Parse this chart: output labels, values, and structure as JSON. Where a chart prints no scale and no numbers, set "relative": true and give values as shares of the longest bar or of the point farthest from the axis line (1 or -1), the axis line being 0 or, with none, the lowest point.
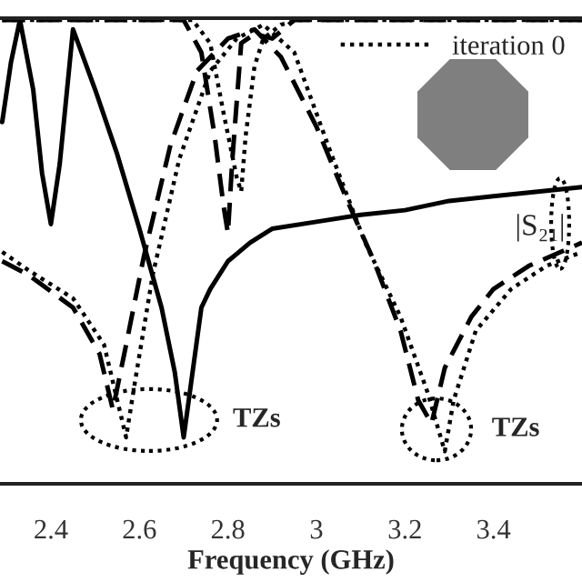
{
  "chart_data": {
    "type": "line",
    "relative": true,
    "xlabel": "Frequency (GHz)",
    "xlim": [
      2.285,
      3.6
    ],
    "xticks": [
      2.4,
      2.6,
      2.8,
      3,
      3.2,
      3.4
    ],
    "tick_labels": "x",
    "grid": false,
    "legend": "top right",
    "annotations": [
      "TZs",
      "TZs",
      "|S₂₁|"
    ],
    "series": [
      {
        "color": "#000000",
        "line_style": "solid",
        "x": [
          2.29,
          2.31,
          2.33,
          2.36,
          2.38,
          2.4,
          2.42,
          2.45,
          2.5,
          2.55,
          2.6,
          2.65,
          2.68,
          2.7,
          2.72,
          2.74,
          2.76,
          2.8,
          2.85,
          2.9,
          3.0,
          3.1,
          3.2,
          3.3,
          3.4,
          3.5,
          3.6
        ],
        "values": [
          0.78,
          0.91,
          1.0,
          0.85,
          0.67,
          0.56,
          0.69,
          0.98,
          0.85,
          0.71,
          0.55,
          0.38,
          0.24,
          0.1,
          0.24,
          0.38,
          0.42,
          0.48,
          0.52,
          0.55,
          0.565,
          0.58,
          0.59,
          0.61,
          0.62,
          0.63,
          0.64
        ]
      },
      {
        "color": "#000000",
        "line_style": "dashed",
        "x": [
          2.29,
          2.5,
          2.7,
          2.74,
          2.77,
          2.79,
          2.8,
          2.81,
          2.83,
          2.86,
          2.9,
          2.95,
          3.0,
          3.6
        ],
        "values": [
          1,
          1,
          1,
          0.93,
          0.75,
          0.6,
          0.54,
          0.7,
          0.95,
          0.97,
          0.96,
          1,
          1,
          1
        ]
      },
      {
        "color": "#000000",
        "line_style": "dashed",
        "x": [
          2.29,
          2.35,
          2.45,
          2.51,
          2.54,
          2.57,
          2.61,
          2.67,
          2.73,
          2.8,
          2.86,
          2.92,
          3.0,
          3.07,
          3.13,
          3.19,
          3.23,
          3.26,
          3.29,
          3.35,
          3.4,
          3.48,
          3.6
        ],
        "values": [
          0.48,
          0.45,
          0.38,
          0.28,
          0.16,
          0.3,
          0.49,
          0.73,
          0.89,
          0.96,
          0.98,
          0.92,
          0.77,
          0.61,
          0.48,
          0.33,
          0.18,
          0.13,
          0.25,
          0.36,
          0.42,
          0.47,
          0.52
        ]
      },
      {
        "name": "iteration 0",
        "color": "#000000",
        "line_style": "dotted",
        "x": [
          2.29,
          2.5,
          2.72,
          2.76,
          2.79,
          2.82,
          2.83,
          2.84,
          2.86,
          2.88,
          2.92,
          2.96,
          3.6
        ],
        "values": [
          1,
          1,
          1,
          0.95,
          0.8,
          0.66,
          0.63,
          0.75,
          0.9,
          0.96,
          0.99,
          1,
          1
        ]
      },
      {
        "color": "#000000",
        "line_style": "dotted",
        "x": [
          2.29,
          2.35,
          2.45,
          2.52,
          2.56,
          2.57,
          2.59,
          2.63,
          2.69,
          2.76,
          2.82,
          2.88,
          2.95,
          3.03,
          3.11,
          3.19,
          3.25,
          3.29,
          3.31,
          3.36,
          3.44,
          3.52,
          3.6
        ],
        "values": [
          0.5,
          0.46,
          0.4,
          0.3,
          0.14,
          0.1,
          0.22,
          0.45,
          0.7,
          0.89,
          0.96,
          0.99,
          0.93,
          0.72,
          0.52,
          0.36,
          0.2,
          0.07,
          0.18,
          0.33,
          0.42,
          0.47,
          0.5
        ]
      }
    ]
  }
}
